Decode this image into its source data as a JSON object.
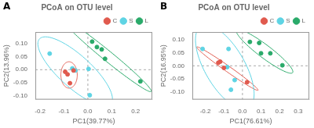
{
  "chart_data": [
    {
      "type": "scatter",
      "title": "PCoA on OTU level",
      "panel_label": "A",
      "xlabel": "PC1(39.77%)",
      "ylabel": "PC2(13.96%)",
      "xlim": [
        -0.22,
        0.27
      ],
      "ylim": [
        -0.115,
        0.145
      ],
      "xticks": [
        -0.2,
        -0.1,
        {
          "value": 0,
          "label": "0.0"
        },
        0.1,
        0.2
      ],
      "yticks": [
        {
          "value": -0.1,
          "label": "-0.10"
        },
        -0.05,
        {
          "value": 0,
          "label": "0.00"
        },
        0.05,
        {
          "value": 0.1,
          "label": "0.10"
        }
      ],
      "grid": false,
      "legend": "upper right",
      "hlines": [
        0
      ],
      "vlines": [
        0
      ],
      "series": [
        {
          "name": "C",
          "color": "#e05a4e",
          "values": [
            [
              -0.085,
              -0.018
            ],
            [
              -0.095,
              -0.008
            ],
            [
              -0.06,
              -0.003
            ],
            [
              -0.075,
              -0.052
            ]
          ],
          "ellipse": {
            "center": [
              -0.07875,
              -0.02025
            ],
            "width": 0.10151,
            "height": 0.06868,
            "angle": 90.63
          }
        },
        {
          "name": "S",
          "color": "#5fd4e4",
          "values": [
            [
              -0.16,
              0.062
            ],
            [
              -0.065,
              0.005
            ],
            [
              -0.052,
              -0.003
            ],
            [
              0.003,
              0.003
            ],
            [
              0.008,
              -0.098
            ]
          ],
          "ellipse": {
            "center": [
              -0.0532,
              -0.0062
            ],
            "width": 0.3893,
            "height": 0.12804,
            "angle": 140.82
          }
        },
        {
          "name": "L",
          "color": "#2aaa6a",
          "values": [
            [
              0.018,
              0.108
            ],
            [
              0.038,
              0.087
            ],
            [
              0.058,
              0.078
            ],
            [
              0.072,
              0.042
            ],
            [
              0.22,
              -0.045
            ]
          ],
          "ellipse": {
            "center": [
              0.0812,
              0.054
            ],
            "width": 0.45985,
            "height": 0.03991,
            "angle": 143.22
          }
        }
      ]
    },
    {
      "type": "scatter",
      "title": "PCoA on OTU level",
      "panel_label": "B",
      "xlabel": "PC1(76.61%)",
      "ylabel": "PC2(16.95%)",
      "xlim": [
        -0.27,
        0.36
      ],
      "ylim": [
        -0.13,
        0.13
      ],
      "xticks": [
        -0.2,
        -0.1,
        {
          "value": 0,
          "label": "0.0"
        },
        0.1,
        0.2,
        0.3
      ],
      "yticks": [
        {
          "value": -0.1,
          "label": "-0.10"
        },
        -0.05,
        {
          "value": 0,
          "label": "0.00"
        },
        0.05,
        {
          "value": 0.1,
          "label": "0.10"
        }
      ],
      "grid": false,
      "legend": "upper right",
      "hlines": [
        0
      ],
      "vlines": [
        0
      ],
      "series": [
        {
          "name": "C",
          "color": "#e05a4e",
          "values": [
            [
              -0.13,
              0.012
            ],
            [
              -0.12,
              0.016
            ],
            [
              -0.1,
              -0.008
            ],
            [
              0.025,
              -0.063
            ]
          ],
          "ellipse": {
            "center": [
              -0.08125,
              -0.01075
            ],
            "width": 0.36999,
            "height": 0.02395,
            "angle": 153.35
          }
        },
        {
          "name": "S",
          "color": "#5fd4e4",
          "values": [
            [
              -0.215,
              0.065
            ],
            [
              -0.075,
              0.065
            ],
            [
              -0.082,
              -0.005
            ],
            [
              -0.042,
              -0.055
            ],
            [
              -0.062,
              -0.092
            ]
          ],
          "ellipse": {
            "center": [
              -0.0952,
              -0.0044
            ],
            "width": 0.41078,
            "height": 0.19017,
            "angle": 133.86
          }
        },
        {
          "name": "L",
          "color": "#2aaa6a",
          "values": [
            [
              0.04,
              0.092
            ],
            [
              0.09,
              0.088
            ],
            [
              0.15,
              0.048
            ],
            [
              0.215,
              0.002
            ],
            [
              0.1,
              0.048
            ]
          ],
          "ellipse": {
            "center": [
              0.119,
              0.0556
            ],
            "width": 0.34441,
            "height": 0.05444,
            "angle": 152.05
          }
        }
      ]
    }
  ]
}
